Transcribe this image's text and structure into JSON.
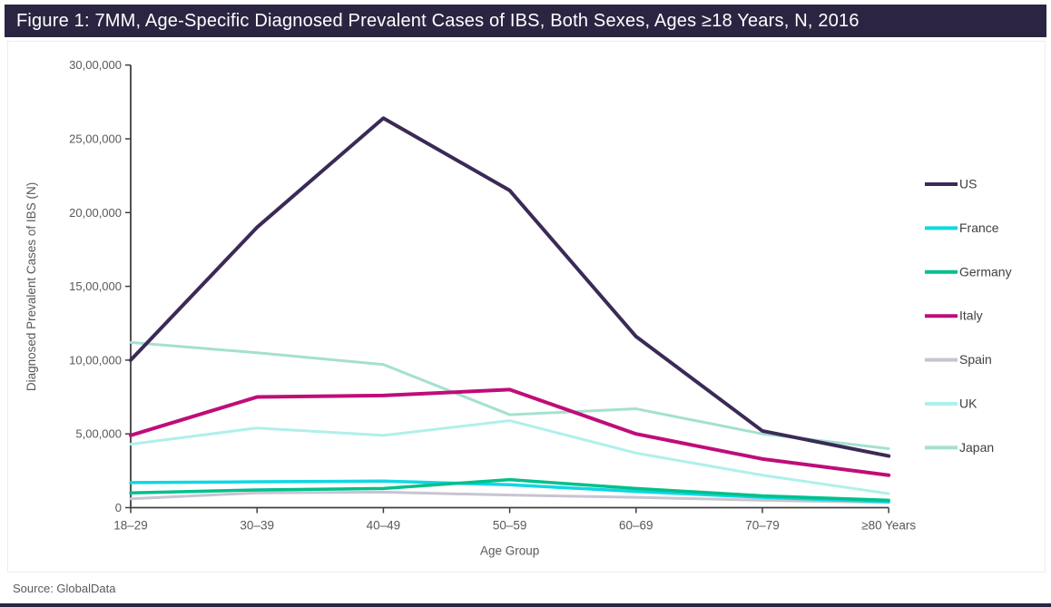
{
  "header": {
    "title": "Figure 1: 7MM, Age-Specific Diagnosed Prevalent Cases of IBS, Both Sexes, Ages ≥18 Years, N, 2016"
  },
  "footer": {
    "source": "Source: GlobalData"
  },
  "colors": {
    "title_bar_bg": "#2b2542",
    "axis_line": "#404040",
    "axis_text": "#595959",
    "legend_text": "#404040"
  },
  "chart_data": {
    "type": "line",
    "title": "Figure 1: 7MM, Age-Specific Diagnosed Prevalent Cases of IBS, Both Sexes, Ages ≥18 Years, N, 2016",
    "xlabel": "Age Group",
    "ylabel": "Diagnosed Prevalent Cases of IBS (N)",
    "categories": [
      "18–29",
      "30–39",
      "40–49",
      "50–59",
      "60–69",
      "70–79",
      "≥80 Years"
    ],
    "series": [
      {
        "name": "US",
        "color": "#3b2a57",
        "width": 4,
        "values": [
          1000000,
          1900000,
          2640000,
          2150000,
          1160000,
          520000,
          350000
        ]
      },
      {
        "name": "France",
        "color": "#10d7e2",
        "width": 3.5,
        "values": [
          170000,
          175000,
          180000,
          155000,
          110000,
          70000,
          40000
        ]
      },
      {
        "name": "Germany",
        "color": "#00c08b",
        "width": 3.5,
        "values": [
          100000,
          120000,
          130000,
          190000,
          130000,
          80000,
          50000
        ]
      },
      {
        "name": "Italy",
        "color": "#bf0d78",
        "width": 4,
        "values": [
          490000,
          750000,
          760000,
          800000,
          500000,
          330000,
          220000
        ]
      },
      {
        "name": "Spain",
        "color": "#c8c4d0",
        "width": 3,
        "values": [
          60000,
          100000,
          105000,
          85000,
          70000,
          50000,
          35000
        ]
      },
      {
        "name": "UK",
        "color": "#aff0eb",
        "width": 3,
        "values": [
          430000,
          540000,
          490000,
          590000,
          370000,
          220000,
          95000
        ]
      },
      {
        "name": "Japan",
        "color": "#a4e0d0",
        "width": 3,
        "values": [
          1120000,
          1050000,
          970000,
          630000,
          670000,
          500000,
          400000
        ]
      }
    ],
    "ylim": [
      0,
      3000000
    ],
    "ytick_interval": 500000,
    "ytick_labels": [
      "0",
      "5,00,000",
      "10,00,000",
      "15,00,000",
      "20,00,000",
      "25,00,000",
      "30,00,000"
    ],
    "grid": false,
    "legend_position": "right"
  }
}
